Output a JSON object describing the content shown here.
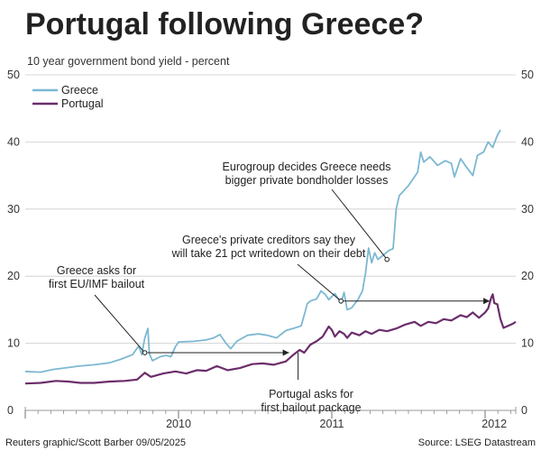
{
  "title": "Portugal following Greece?",
  "subtitle": "10 year government bond yield - percent",
  "footer": {
    "credit": "Reuters graphic/Scott Barber 09/05/2025",
    "source": "Source: LSEG Datastream"
  },
  "chart_data": {
    "type": "line",
    "title": "Portugal following Greece?",
    "ylabel": "10 year government bond yield - percent",
    "ylim": [
      0,
      50
    ],
    "yticks": [
      0,
      10,
      20,
      30,
      40,
      50
    ],
    "xlim": [
      2009.0,
      2012.2
    ],
    "xtick_labels": [
      {
        "label": "2010",
        "x": 2010.0
      },
      {
        "label": "2011",
        "x": 2011.0
      },
      {
        "label": "2012",
        "x": 2012.0
      }
    ],
    "grid": "horizontal",
    "legend_position": "top-left",
    "colors": {
      "Greece": "#7db8d2",
      "Portugal": "#6b2d6b",
      "grid": "#cccccc",
      "frame": "#999999"
    },
    "series": [
      {
        "name": "Greece",
        "points": [
          [
            2009.0,
            5.8
          ],
          [
            2009.1,
            5.7
          ],
          [
            2009.18,
            6.1
          ],
          [
            2009.25,
            6.3
          ],
          [
            2009.35,
            6.6
          ],
          [
            2009.45,
            6.8
          ],
          [
            2009.55,
            7.1
          ],
          [
            2009.62,
            7.6
          ],
          [
            2009.7,
            8.3
          ],
          [
            2009.74,
            9.6
          ],
          [
            2009.76,
            8.3
          ],
          [
            2009.78,
            10.8
          ],
          [
            2009.8,
            12.2
          ],
          [
            2009.81,
            8.4
          ],
          [
            2009.83,
            7.4
          ],
          [
            2009.88,
            8.0
          ],
          [
            2009.92,
            8.2
          ],
          [
            2009.95,
            8.0
          ],
          [
            2009.98,
            9.5
          ],
          [
            2010.0,
            10.2
          ],
          [
            2010.1,
            10.3
          ],
          [
            2010.18,
            10.5
          ],
          [
            2010.23,
            10.8
          ],
          [
            2010.27,
            11.3
          ],
          [
            2010.31,
            10.0
          ],
          [
            2010.34,
            9.2
          ],
          [
            2010.38,
            10.3
          ],
          [
            2010.45,
            11.2
          ],
          [
            2010.52,
            11.4
          ],
          [
            2010.58,
            11.2
          ],
          [
            2010.64,
            10.8
          ],
          [
            2010.7,
            11.9
          ],
          [
            2010.76,
            12.3
          ],
          [
            2010.8,
            12.6
          ],
          [
            2010.82,
            14.2
          ],
          [
            2010.84,
            15.9
          ],
          [
            2010.86,
            16.3
          ],
          [
            2010.9,
            16.6
          ],
          [
            2010.93,
            17.8
          ],
          [
            2010.96,
            17.2
          ],
          [
            2010.98,
            16.5
          ],
          [
            2011.02,
            17.4
          ],
          [
            2011.06,
            16.0
          ],
          [
            2011.08,
            17.6
          ],
          [
            2011.1,
            15.0
          ],
          [
            2011.13,
            15.3
          ],
          [
            2011.17,
            16.5
          ],
          [
            2011.2,
            17.8
          ],
          [
            2011.22,
            20.5
          ],
          [
            2011.24,
            24.2
          ],
          [
            2011.26,
            22.0
          ],
          [
            2011.28,
            23.5
          ],
          [
            2011.3,
            22.5
          ],
          [
            2011.34,
            23.2
          ],
          [
            2011.37,
            23.8
          ],
          [
            2011.4,
            24.1
          ],
          [
            2011.42,
            30.0
          ],
          [
            2011.44,
            32.0
          ],
          [
            2011.5,
            33.5
          ],
          [
            2011.56,
            35.5
          ],
          [
            2011.58,
            38.5
          ],
          [
            2011.6,
            37.0
          ],
          [
            2011.64,
            37.8
          ],
          [
            2011.69,
            36.5
          ],
          [
            2011.74,
            37.2
          ],
          [
            2011.78,
            36.8
          ],
          [
            2011.8,
            34.8
          ],
          [
            2011.84,
            37.5
          ],
          [
            2011.88,
            36.2
          ],
          [
            2011.92,
            35.0
          ],
          [
            2011.95,
            38.0
          ],
          [
            2011.99,
            38.5
          ],
          [
            2012.02,
            40.0
          ],
          [
            2012.05,
            39.2
          ],
          [
            2012.08,
            41.0
          ],
          [
            2012.1,
            41.8
          ]
        ]
      },
      {
        "name": "Portugal",
        "points": [
          [
            2009.0,
            4.0
          ],
          [
            2009.1,
            4.1
          ],
          [
            2009.2,
            4.4
          ],
          [
            2009.28,
            4.3
          ],
          [
            2009.36,
            4.1
          ],
          [
            2009.45,
            4.1
          ],
          [
            2009.55,
            4.3
          ],
          [
            2009.65,
            4.4
          ],
          [
            2009.73,
            4.6
          ],
          [
            2009.78,
            5.6
          ],
          [
            2009.82,
            5.0
          ],
          [
            2009.9,
            5.5
          ],
          [
            2009.98,
            5.8
          ],
          [
            2010.05,
            5.5
          ],
          [
            2010.12,
            6.0
          ],
          [
            2010.18,
            5.9
          ],
          [
            2010.25,
            6.6
          ],
          [
            2010.32,
            6.0
          ],
          [
            2010.4,
            6.3
          ],
          [
            2010.48,
            6.9
          ],
          [
            2010.55,
            7.0
          ],
          [
            2010.62,
            6.8
          ],
          [
            2010.7,
            7.3
          ],
          [
            2010.75,
            8.3
          ],
          [
            2010.79,
            9.0
          ],
          [
            2010.82,
            8.6
          ],
          [
            2010.86,
            9.8
          ],
          [
            2010.9,
            10.3
          ],
          [
            2010.94,
            11.0
          ],
          [
            2010.98,
            12.5
          ],
          [
            2011.0,
            12.0
          ],
          [
            2011.02,
            11.0
          ],
          [
            2011.05,
            11.8
          ],
          [
            2011.08,
            11.4
          ],
          [
            2011.1,
            10.8
          ],
          [
            2011.13,
            11.6
          ],
          [
            2011.18,
            11.2
          ],
          [
            2011.22,
            11.8
          ],
          [
            2011.26,
            11.4
          ],
          [
            2011.31,
            12.0
          ],
          [
            2011.36,
            11.8
          ],
          [
            2011.42,
            12.2
          ],
          [
            2011.48,
            12.8
          ],
          [
            2011.54,
            13.2
          ],
          [
            2011.58,
            12.6
          ],
          [
            2011.63,
            13.2
          ],
          [
            2011.68,
            13.0
          ],
          [
            2011.73,
            13.6
          ],
          [
            2011.78,
            13.4
          ],
          [
            2011.84,
            14.2
          ],
          [
            2011.88,
            13.9
          ],
          [
            2011.92,
            14.6
          ],
          [
            2011.96,
            13.8
          ],
          [
            2012.0,
            14.6
          ],
          [
            2012.02,
            15.2
          ],
          [
            2012.04,
            16.8
          ],
          [
            2012.05,
            17.3
          ],
          [
            2012.06,
            16.0
          ],
          [
            2012.08,
            15.8
          ],
          [
            2012.1,
            13.6
          ],
          [
            2012.12,
            12.3
          ],
          [
            2012.15,
            12.6
          ],
          [
            2012.18,
            12.9
          ],
          [
            2012.2,
            13.2
          ]
        ]
      }
    ],
    "annotations": [
      {
        "id": "greece-bailout",
        "lines": [
          "Greece asks for",
          "first EU/IMF bailout"
        ],
        "x": 2009.78,
        "y": 8.6
      },
      {
        "id": "portugal-bailout",
        "lines": [
          "Portugal asks for",
          "first bailout package"
        ],
        "x": 2010.78,
        "y": 8.6
      },
      {
        "id": "private-creditors",
        "lines": [
          "Greece's private creditors say they",
          "will take 21 pct writedown on their debt"
        ],
        "x": 2011.06,
        "y": 16.3
      },
      {
        "id": "eurogroup",
        "lines": [
          "Eurogroup decides Greece needs",
          "bigger private bondholder losses"
        ],
        "x": 2011.36,
        "y": 22.5
      }
    ]
  }
}
